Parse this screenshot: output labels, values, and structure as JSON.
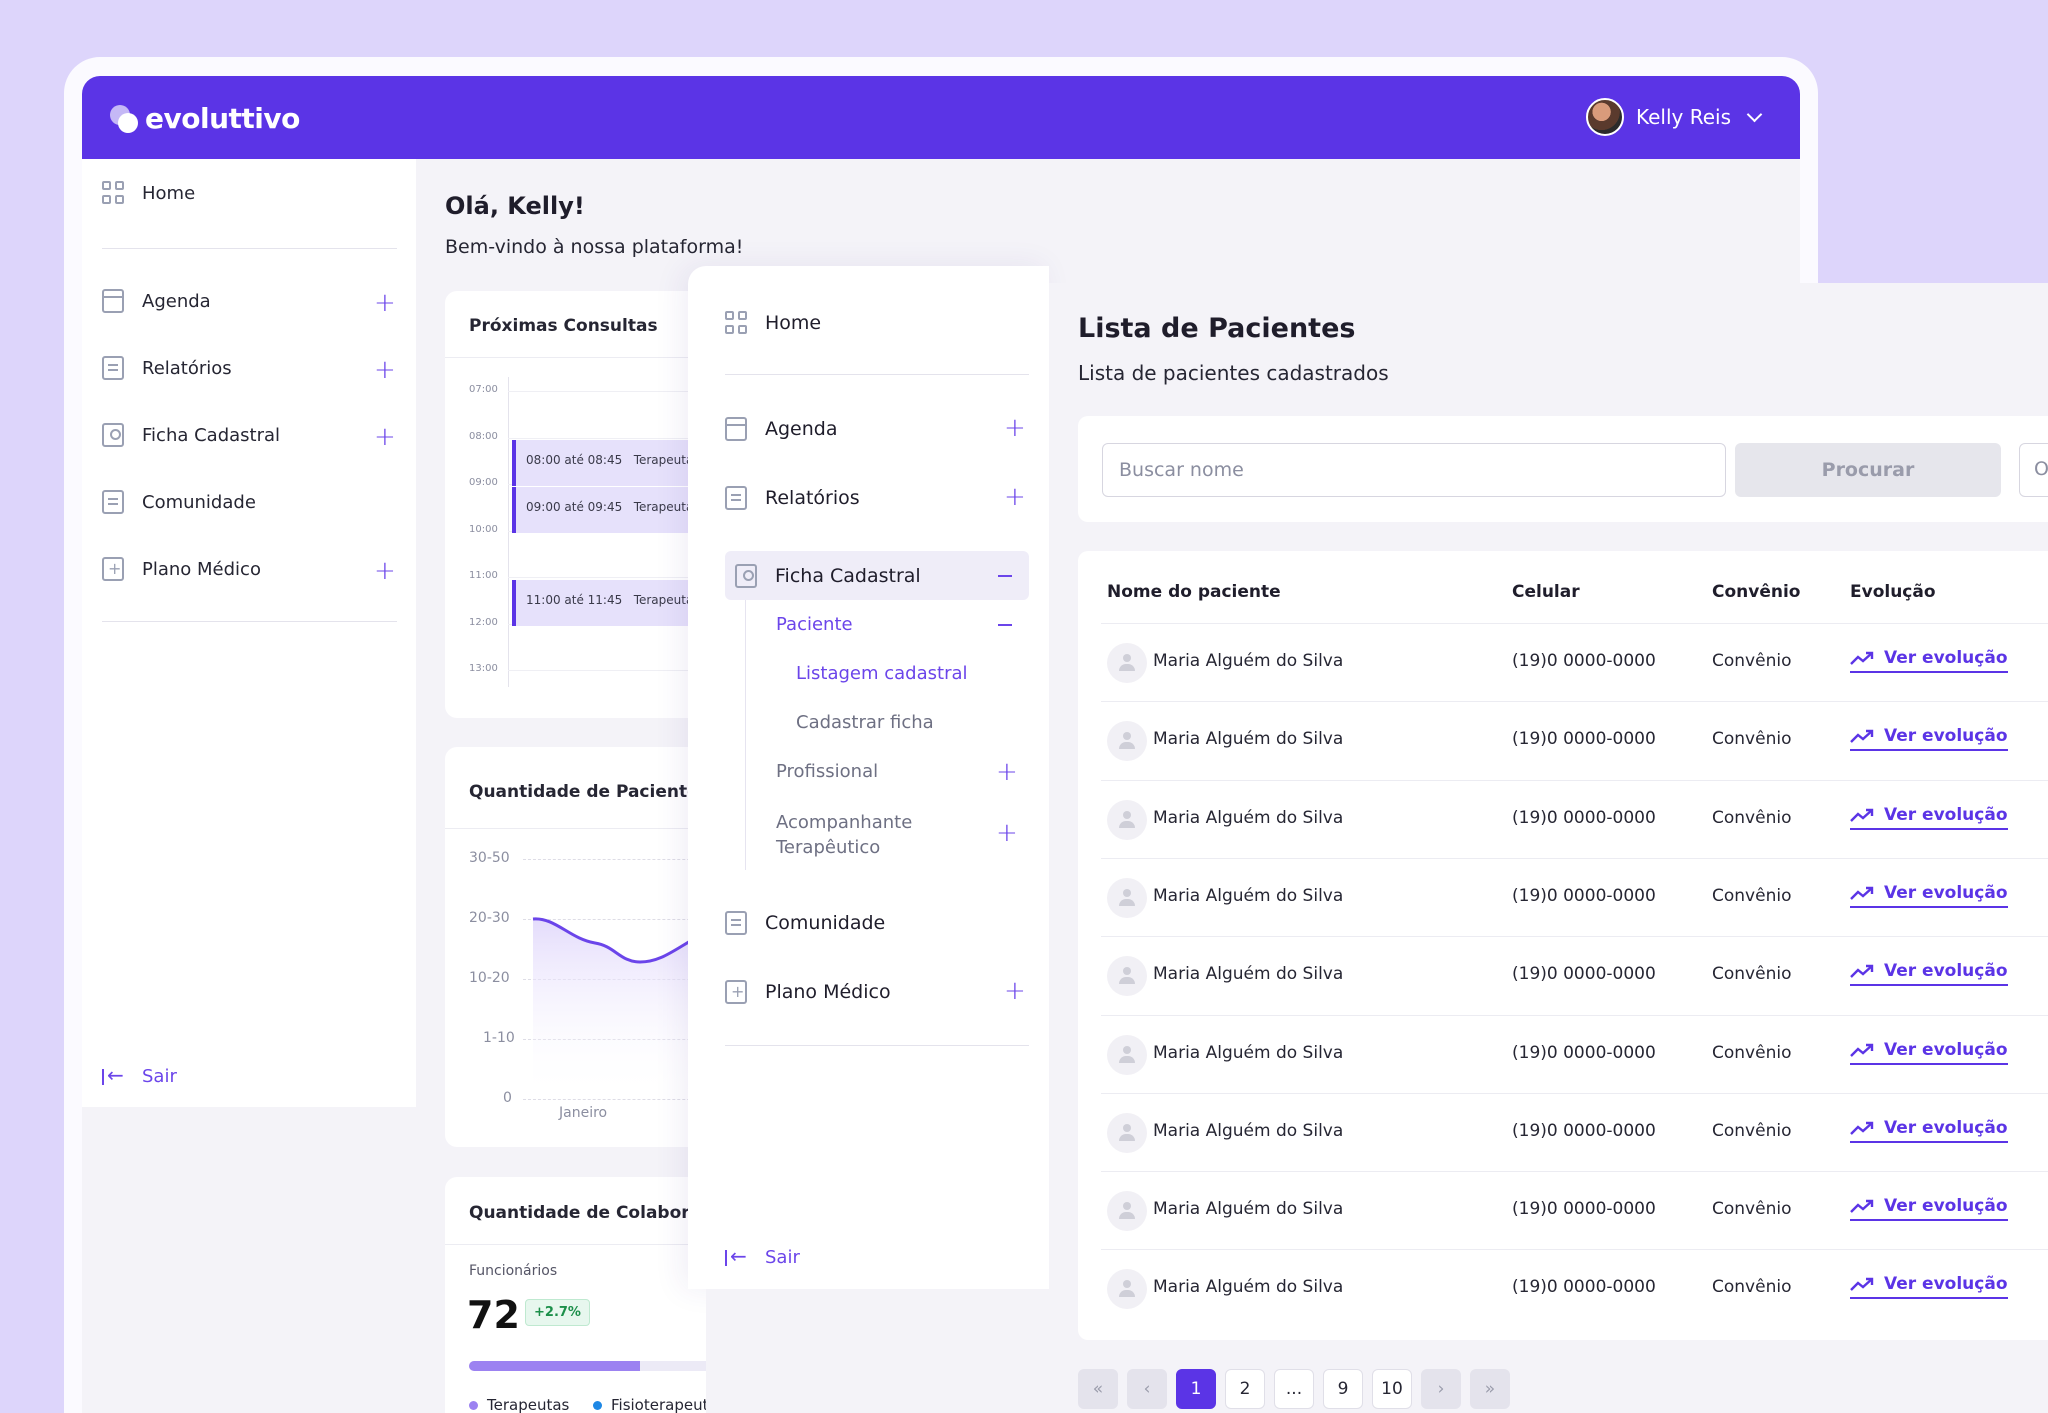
{
  "brand": {
    "name": "evoluttivo",
    "accent": "#5b34e6"
  },
  "user": {
    "name": "Kelly Reis"
  },
  "back": {
    "sidebar": {
      "items": [
        {
          "label": "Home",
          "icon": "grid-icon"
        },
        {
          "label": "Agenda",
          "icon": "calendar-icon",
          "expand": "+"
        },
        {
          "label": "Relatórios",
          "icon": "report-icon",
          "expand": "+"
        },
        {
          "label": "Ficha Cadastral",
          "icon": "id-card-icon",
          "expand": "+"
        },
        {
          "label": "Comunidade",
          "icon": "community-icon"
        },
        {
          "label": "Plano Médico",
          "icon": "medical-plan-icon",
          "expand": "+"
        }
      ],
      "logout": "Sair"
    },
    "greeting": "Olá, Kelly!",
    "welcome": "Bem-vindo à nossa plataforma!",
    "appointments": {
      "title": "Próximas Consultas",
      "hours": [
        "07:00",
        "08:00",
        "09:00",
        "10:00",
        "11:00",
        "12:00",
        "13:00"
      ],
      "events": [
        {
          "time": "08:00 até 08:45",
          "who": "Terapeuta:"
        },
        {
          "time": "09:00 até 09:45",
          "who": "Terapeuta:"
        },
        {
          "time": "11:00 até 11:45",
          "who": "Terapeuta: A"
        }
      ]
    },
    "patients_chart": {
      "title": "Quantidade de Paciente",
      "y_ticks": [
        "30-50",
        "20-30",
        "10-20",
        "1-10",
        "0"
      ],
      "x_label": "Janeiro"
    },
    "collaborators": {
      "title": "Quantidade de Colaboradores",
      "metric_label": "Funcionários",
      "metric_value": "72",
      "delta": "+2.7%",
      "progress_fraction": 0.62,
      "legend": [
        {
          "label": "Terapeutas",
          "color": "#9c82f1"
        },
        {
          "label": "Fisioterapeutas",
          "color": "#1e88e5"
        }
      ]
    }
  },
  "front": {
    "sidebar": {
      "home": "Home",
      "agenda": "Agenda",
      "relatorios": "Relatórios",
      "ficha": "Ficha Cadastral",
      "paciente": "Paciente",
      "listagem": "Listagem cadastral",
      "cadastrar": "Cadastrar ficha",
      "profissional": "Profissional",
      "acompanhante_1": "Acompanhante",
      "acompanhante_2": "Terapêutico",
      "comunidade": "Comunidade",
      "plano": "Plano Médico",
      "logout": "Sair"
    },
    "title": "Lista de Pacientes",
    "subtitle": "Lista de pacientes cadastrados",
    "search": {
      "placeholder": "Buscar nome",
      "button": "Procurar",
      "extra": "O"
    },
    "table": {
      "columns": [
        "Nome do paciente",
        "Celular",
        "Convênio",
        "Evolução"
      ],
      "rows": [
        {
          "name": "Maria Alguém do Silva",
          "phone": "(19)0 0000-0000",
          "plan": "Convênio",
          "link": "Ver evolução"
        },
        {
          "name": "Maria Alguém do Silva",
          "phone": "(19)0 0000-0000",
          "plan": "Convênio",
          "link": "Ver evolução"
        },
        {
          "name": "Maria Alguém do Silva",
          "phone": "(19)0 0000-0000",
          "plan": "Convênio",
          "link": "Ver evolução"
        },
        {
          "name": "Maria Alguém do Silva",
          "phone": "(19)0 0000-0000",
          "plan": "Convênio",
          "link": "Ver evolução"
        },
        {
          "name": "Maria Alguém do Silva",
          "phone": "(19)0 0000-0000",
          "plan": "Convênio",
          "link": "Ver evolução"
        },
        {
          "name": "Maria Alguém do Silva",
          "phone": "(19)0 0000-0000",
          "plan": "Convênio",
          "link": "Ver evolução"
        },
        {
          "name": "Maria Alguém do Silva",
          "phone": "(19)0 0000-0000",
          "plan": "Convênio",
          "link": "Ver evolução"
        },
        {
          "name": "Maria Alguém do Silva",
          "phone": "(19)0 0000-0000",
          "plan": "Convênio",
          "link": "Ver evolução"
        },
        {
          "name": "Maria Alguém do Silva",
          "phone": "(19)0 0000-0000",
          "plan": "Convênio",
          "link": "Ver evolução"
        }
      ]
    },
    "pagination": {
      "first": "«",
      "prev": "‹",
      "pages": [
        "1",
        "2",
        "...",
        "9",
        "10"
      ],
      "next": "›",
      "last": "»",
      "current": "1"
    }
  }
}
